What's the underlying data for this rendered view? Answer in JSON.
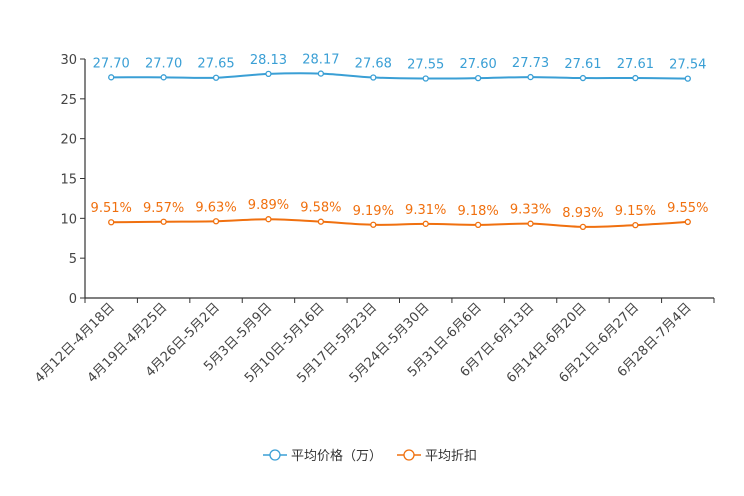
{
  "chart_data": {
    "type": "line",
    "categories": [
      "4月12日-4月18日",
      "4月19日-4月25日",
      "4月26日-5月2日",
      "5月3日-5月9日",
      "5月10日-5月16日",
      "5月17日-5月23日",
      "5月24日-5月30日",
      "5月31日-6月6日",
      "6月7日-6月13日",
      "6月14日-6月20日",
      "6月21日-6月27日",
      "6月28日-7月4日"
    ],
    "series": [
      {
        "name": "平均价格（万）",
        "color": "#3a9fd5",
        "values": [
          27.7,
          27.7,
          27.65,
          28.13,
          28.17,
          27.68,
          27.55,
          27.6,
          27.73,
          27.61,
          27.61,
          27.54
        ],
        "labels": [
          "27.70",
          "27.70",
          "27.65",
          "28.13",
          "28.17",
          "27.68",
          "27.55",
          "27.60",
          "27.73",
          "27.61",
          "27.61",
          "27.54"
        ]
      },
      {
        "name": "平均折扣",
        "color": "#f0700f",
        "values": [
          9.51,
          9.57,
          9.63,
          9.89,
          9.58,
          9.19,
          9.31,
          9.18,
          9.33,
          8.93,
          9.15,
          9.55
        ],
        "labels": [
          "9.51%",
          "9.57%",
          "9.63%",
          "9.89%",
          "9.58%",
          "9.19%",
          "9.31%",
          "9.18%",
          "9.33%",
          "8.93%",
          "9.15%",
          "9.55%"
        ]
      }
    ],
    "yticks": [
      "0",
      "5",
      "10",
      "15",
      "20",
      "25",
      "30"
    ],
    "ylim": [
      0,
      30
    ],
    "title": "",
    "xlabel": "",
    "ylabel": "",
    "legend_position": "bottom-center"
  }
}
